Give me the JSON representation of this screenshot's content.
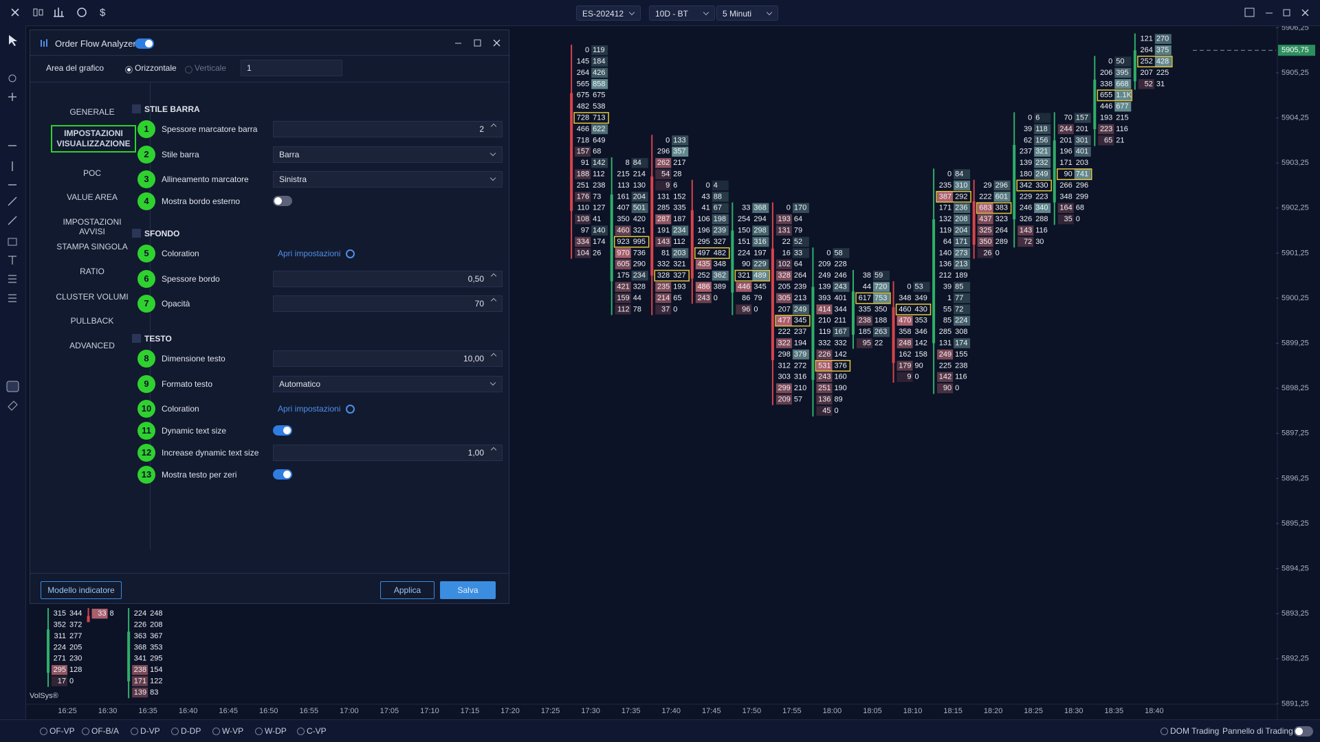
{
  "toolbar": {
    "currency_icon": "$",
    "instrument": "ES-202412",
    "dataset": "10D - BT",
    "timeframe": "5 Minuti"
  },
  "dialog": {
    "title": "Order Flow Analyzer",
    "enabled": true,
    "area_label": "Area del grafico",
    "orientation": [
      "Orizzontale",
      "Verticale"
    ],
    "orientation_selected": 0,
    "area_value": "1",
    "tabs": [
      "GENERALE",
      "IMPOSTAZIONI VISUALIZZAZIONE",
      "POC",
      "VALUE AREA",
      "IMPOSTAZIONI AVVISI",
      "STAMPA SINGOLA",
      "RATIO",
      "CLUSTER VOLUMI",
      "PULLBACK",
      "ADVANCED"
    ],
    "selected_tab": 1,
    "sections": [
      {
        "title": "STILE BARRA",
        "settings": [
          {
            "badge": "1",
            "label": "Spessore marcatore barra",
            "control": "spin",
            "value": "2"
          },
          {
            "badge": "2",
            "label": "Stile barra",
            "control": "select",
            "value": "Barra"
          },
          {
            "badge": "3",
            "label": "Allineamento marcatore",
            "control": "select",
            "value": "Sinistra"
          },
          {
            "badge": "4",
            "label": "Mostra bordo esterno",
            "control": "toggle",
            "on": false
          }
        ]
      },
      {
        "title": "SFONDO",
        "settings": [
          {
            "badge": "5",
            "label": "Coloration",
            "control": "link",
            "value": "Apri impostazioni"
          },
          {
            "badge": "6",
            "label": "Spessore bordo",
            "control": "spin",
            "value": "0,50"
          },
          {
            "badge": "7",
            "label": "Opacità",
            "control": "spin",
            "value": "70"
          }
        ]
      },
      {
        "title": "TESTO",
        "settings": [
          {
            "badge": "8",
            "label": "Dimensione testo",
            "control": "spin",
            "value": "10,00"
          },
          {
            "badge": "9",
            "label": "Formato testo",
            "control": "select",
            "value": "Automatico"
          },
          {
            "badge": "10",
            "label": "Coloration",
            "control": "link",
            "value": "Apri impostazioni"
          },
          {
            "badge": "11",
            "label": "Dynamic text size",
            "control": "toggle",
            "on": true
          },
          {
            "badge": "12",
            "label": "Increase dynamic text size",
            "control": "spin",
            "value": "1,00"
          },
          {
            "badge": "13",
            "label": "Mostra testo per zeri",
            "control": "toggle",
            "on": true
          }
        ]
      }
    ],
    "footer": {
      "template": "Modello indicatore",
      "apply": "Applica",
      "save": "Salva"
    }
  },
  "chart": {
    "brand": "VolSys®",
    "current_price": {
      "value": 5905.75,
      "label": "5905,75"
    },
    "price_ticks": [
      {
        "value": 5906.25,
        "label": "5906,25"
      },
      {
        "value": 5905.25,
        "label": "5905,25"
      },
      {
        "value": 5904.25,
        "label": "5904,25"
      },
      {
        "value": 5903.25,
        "label": "5903,25"
      },
      {
        "value": 5902.25,
        "label": "5902,25"
      },
      {
        "value": 5901.25,
        "label": "5901,25"
      },
      {
        "value": 5900.25,
        "label": "5900,25"
      },
      {
        "value": 5899.25,
        "label": "5899,25"
      },
      {
        "value": 5898.25,
        "label": "5898,25"
      },
      {
        "value": 5897.25,
        "label": "5897,25"
      },
      {
        "value": 5896.25,
        "label": "5896,25"
      },
      {
        "value": 5895.25,
        "label": "5895,25"
      },
      {
        "value": 5894.25,
        "label": "5894,25"
      },
      {
        "value": 5893.25,
        "label": "5893,25"
      },
      {
        "value": 5892.25,
        "label": "5892,25"
      },
      {
        "value": 5891.25,
        "label": "5891,25"
      }
    ],
    "times": [
      "16:25",
      "16:30",
      "16:35",
      "16:40",
      "16:45",
      "16:50",
      "16:55",
      "17:00",
      "17:05",
      "17:10",
      "17:15",
      "17:20",
      "17:25",
      "17:30",
      "17:35",
      "17:40",
      "17:45",
      "17:50",
      "17:55",
      "18:00",
      "18:05",
      "18:10",
      "18:15",
      "18:20",
      "18:25",
      "18:30",
      "18:35",
      "18:40"
    ],
    "columns": [
      {
        "time": "16:25",
        "top": 5893.25,
        "up": true,
        "rows": [
          [
            315,
            344
          ],
          [
            352,
            372
          ],
          [
            311,
            277
          ],
          [
            224,
            205
          ],
          [
            271,
            230
          ],
          [
            295,
            128
          ],
          [
            17,
            0
          ]
        ]
      },
      {
        "time": "16:30",
        "top": 5893.25,
        "up": false,
        "rows": [
          [
            33,
            8
          ]
        ]
      },
      {
        "time": "16:35",
        "top": 5893.25,
        "up": true,
        "rows": [
          [
            224,
            248
          ],
          [
            226,
            208
          ],
          [
            363,
            367
          ],
          [
            368,
            353
          ],
          [
            341,
            295
          ],
          [
            238,
            154
          ],
          [
            171,
            122
          ],
          [
            139,
            83
          ]
        ]
      },
      {
        "time": "17:30",
        "top": 5905.75,
        "up": false,
        "poc": 6,
        "rows": [
          [
            0,
            119
          ],
          [
            145,
            184
          ],
          [
            264,
            426
          ],
          [
            565,
            858
          ],
          [
            675,
            675
          ],
          [
            482,
            538
          ],
          [
            728,
            713
          ],
          [
            466,
            622
          ],
          [
            718,
            649
          ],
          [
            157,
            68
          ],
          [
            91,
            142
          ],
          [
            188,
            112
          ],
          [
            251,
            238
          ],
          [
            176,
            73
          ],
          [
            110,
            127
          ],
          [
            108,
            41
          ],
          [
            97,
            140
          ],
          [
            334,
            174
          ],
          [
            104,
            26
          ]
        ]
      },
      {
        "time": "17:35",
        "top": 5903.25,
        "up": true,
        "poc": 7,
        "rows": [
          [
            8,
            84
          ],
          [
            215,
            214
          ],
          [
            113,
            130
          ],
          [
            161,
            204
          ],
          [
            407,
            501
          ],
          [
            350,
            420
          ],
          [
            460,
            321
          ],
          [
            923,
            995
          ],
          [
            970,
            736
          ],
          [
            605,
            290
          ],
          [
            175,
            234
          ],
          [
            421,
            328
          ],
          [
            159,
            44
          ],
          [
            112,
            78
          ]
        ]
      },
      {
        "time": "17:40",
        "top": 5903.75,
        "up": false,
        "poc": 12,
        "rows": [
          [
            0,
            133
          ],
          [
            296,
            357
          ],
          [
            262,
            217
          ],
          [
            54,
            28
          ],
          [
            9,
            6
          ],
          [
            131,
            152
          ],
          [
            285,
            335
          ],
          [
            287,
            187
          ],
          [
            191,
            234
          ],
          [
            143,
            112
          ],
          [
            81,
            203
          ],
          [
            332,
            321
          ],
          [
            328,
            327
          ],
          [
            235,
            193
          ],
          [
            214,
            65
          ],
          [
            37,
            0
          ]
        ]
      },
      {
        "time": "17:45",
        "top": 5902.75,
        "up": false,
        "poc": 6,
        "rows": [
          [
            0,
            4
          ],
          [
            43,
            88
          ],
          [
            41,
            67
          ],
          [
            106,
            198
          ],
          [
            196,
            239
          ],
          [
            295,
            327
          ],
          [
            497,
            482
          ],
          [
            435,
            348
          ],
          [
            252,
            362
          ],
          [
            486,
            389
          ],
          [
            243,
            0
          ]
        ]
      },
      {
        "time": "17:50",
        "top": 5902.25,
        "up": true,
        "poc": 6,
        "rows": [
          [
            33,
            368
          ],
          [
            254,
            294
          ],
          [
            150,
            298
          ],
          [
            151,
            316
          ],
          [
            224,
            197
          ],
          [
            90,
            229
          ],
          [
            321,
            489
          ],
          [
            446,
            345
          ],
          [
            86,
            79
          ],
          [
            96,
            0
          ]
        ]
      },
      {
        "time": "17:55",
        "top": 5902.25,
        "up": false,
        "poc": 10,
        "rows": [
          [
            0,
            170
          ],
          [
            193,
            64
          ],
          [
            131,
            79
          ],
          [
            22,
            52
          ],
          [
            16,
            33
          ],
          [
            102,
            64
          ],
          [
            328,
            264
          ],
          [
            205,
            239
          ],
          [
            305,
            213
          ],
          [
            207,
            249
          ],
          [
            477,
            345
          ],
          [
            222,
            237
          ],
          [
            322,
            194
          ],
          [
            298,
            379
          ],
          [
            312,
            272
          ],
          [
            303,
            316
          ],
          [
            299,
            210
          ],
          [
            209,
            57
          ]
        ]
      },
      {
        "time": "18:00",
        "top": 5901.25,
        "up": true,
        "poc": 10,
        "rows": [
          [
            0,
            58
          ],
          [
            209,
            228
          ],
          [
            249,
            246
          ],
          [
            139,
            243
          ],
          [
            393,
            401
          ],
          [
            414,
            344
          ],
          [
            210,
            211
          ],
          [
            119,
            167
          ],
          [
            332,
            332
          ],
          [
            226,
            142
          ],
          [
            531,
            376
          ],
          [
            243,
            160
          ],
          [
            251,
            190
          ],
          [
            136,
            89
          ],
          [
            45,
            0
          ]
        ]
      },
      {
        "time": "18:05",
        "top": 5900.75,
        "up": true,
        "poc": 2,
        "rows": [
          [
            38,
            59
          ],
          [
            44,
            720
          ],
          [
            617,
            753
          ],
          [
            335,
            350
          ],
          [
            238,
            188
          ],
          [
            185,
            263
          ],
          [
            95,
            22
          ]
        ]
      },
      {
        "time": "18:10",
        "top": 5900.5,
        "up": false,
        "poc": 2,
        "rows": [
          [
            0,
            53
          ],
          [
            348,
            349
          ],
          [
            460,
            430
          ],
          [
            470,
            353
          ],
          [
            358,
            346
          ],
          [
            248,
            142
          ],
          [
            162,
            158
          ],
          [
            179,
            90
          ],
          [
            9,
            0
          ]
        ]
      },
      {
        "time": "18:15",
        "top": 5903.0,
        "up": true,
        "poc": 2,
        "rows": [
          [
            0,
            84
          ],
          [
            235,
            310
          ],
          [
            387,
            292
          ],
          [
            171,
            236
          ],
          [
            132,
            208
          ],
          [
            119,
            204
          ],
          [
            64,
            171
          ],
          [
            140,
            273
          ],
          [
            136,
            213
          ],
          [
            212,
            189
          ],
          [
            39,
            85
          ],
          [
            1,
            77
          ],
          [
            55,
            72
          ],
          [
            85,
            224
          ],
          [
            285,
            308
          ],
          [
            131,
            174
          ],
          [
            249,
            155
          ],
          [
            225,
            238
          ],
          [
            142,
            116
          ],
          [
            90,
            0
          ]
        ]
      },
      {
        "time": "18:20",
        "top": 5902.75,
        "up": false,
        "poc": 2,
        "rows": [
          [
            29,
            296
          ],
          [
            222,
            601
          ],
          [
            683,
            383
          ],
          [
            437,
            323
          ],
          [
            325,
            264
          ],
          [
            350,
            289
          ],
          [
            26,
            0
          ]
        ]
      },
      {
        "time": "18:25",
        "top": 5904.25,
        "up": true,
        "poc": 6,
        "rows": [
          [
            0,
            6
          ],
          [
            39,
            118
          ],
          [
            62,
            156
          ],
          [
            237,
            321
          ],
          [
            139,
            232
          ],
          [
            180,
            249
          ],
          [
            342,
            330
          ],
          [
            229,
            223
          ],
          [
            246,
            340
          ],
          [
            326,
            288
          ],
          [
            143,
            116
          ],
          [
            72,
            30
          ]
        ]
      },
      {
        "time": "18:30",
        "top": 5904.25,
        "up": true,
        "poc": 5,
        "rows": [
          [
            70,
            157
          ],
          [
            244,
            201
          ],
          [
            201,
            301
          ],
          [
            196,
            401
          ],
          [
            171,
            203
          ],
          [
            90,
            741
          ],
          [
            266,
            296
          ],
          [
            348,
            299
          ],
          [
            164,
            68
          ],
          [
            35,
            0
          ]
        ]
      },
      {
        "time": "18:35",
        "top": 5905.5,
        "up": true,
        "poc": 3,
        "rows": [
          [
            0,
            50
          ],
          [
            206,
            395
          ],
          [
            338,
            668
          ],
          [
            655,
            "1.1K"
          ],
          [
            446,
            677
          ],
          [
            193,
            215
          ],
          [
            223,
            116
          ],
          [
            65,
            21
          ]
        ]
      },
      {
        "time": "18:40",
        "top": 5906.0,
        "up": true,
        "poc": 2,
        "rows": [
          [
            121,
            270
          ],
          [
            264,
            375
          ],
          [
            252,
            428
          ],
          [
            207,
            225
          ],
          [
            52,
            31
          ]
        ]
      }
    ]
  },
  "bottom_bar": {
    "studies": [
      "OF-VP",
      "OF-B/A",
      "D-VP",
      "D-DP",
      "W-VP",
      "W-DP",
      "C-VP"
    ],
    "dom": "DOM Trading",
    "panel": "Pannello di Trading"
  }
}
